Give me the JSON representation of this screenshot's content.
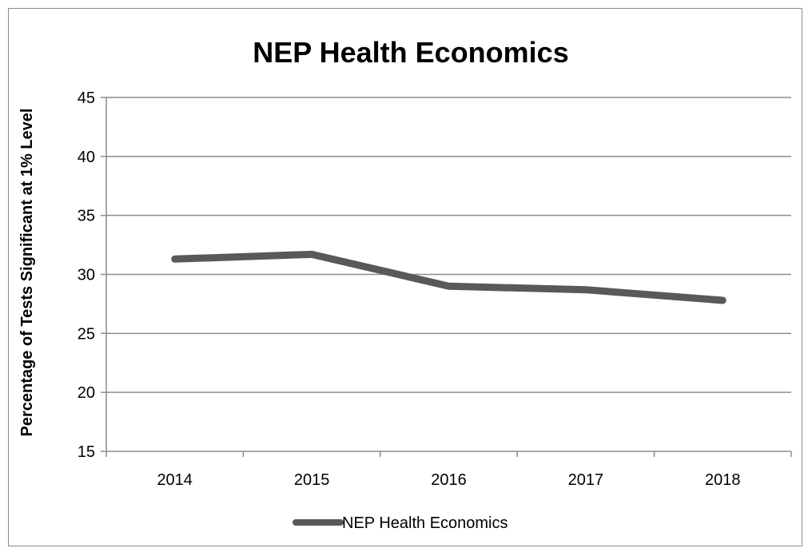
{
  "chart_data": {
    "type": "line",
    "title": "NEP Health Economics",
    "xlabel": "",
    "ylabel": "Percentage of Tests Significant at 1% Level",
    "categories": [
      "2014",
      "2015",
      "2016",
      "2017",
      "2018"
    ],
    "series": [
      {
        "name": "NEP Health Economics",
        "values": [
          31.3,
          31.7,
          29.0,
          28.7,
          27.8
        ],
        "color": "#595959"
      }
    ],
    "ylim": [
      15,
      45
    ],
    "yticks": [
      15,
      20,
      25,
      30,
      35,
      40,
      45
    ],
    "grid": "horizontal",
    "legend": "bottom",
    "gridline_color": "#8c8c8c"
  }
}
